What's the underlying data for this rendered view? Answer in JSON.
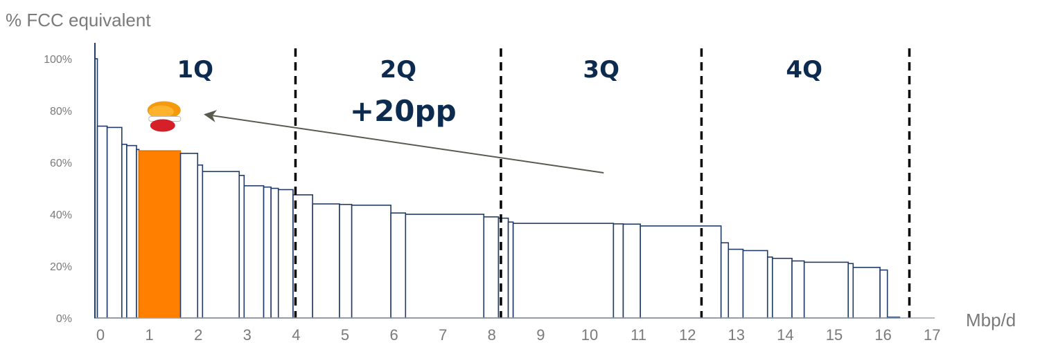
{
  "chart_data": {
    "type": "bar",
    "subtype": "variable-width cost curve",
    "ylabel": "% FCC equivalent",
    "xlabel": "Mbp/d",
    "xlim": [
      0,
      17
    ],
    "ylim": [
      0,
      100
    ],
    "x_ticks": [
      "0",
      "1",
      "2",
      "3",
      "4",
      "5",
      "6",
      "7",
      "8",
      "9",
      "10",
      "11",
      "12",
      "13",
      "14",
      "15",
      "16",
      "17"
    ],
    "y_ticks": [
      "0%",
      "20%",
      "40%",
      "60%",
      "80%",
      "100%"
    ],
    "grid": false,
    "legend": "none",
    "colors": {
      "outline": "#1f3b66",
      "highlight": "#ff7f00",
      "quartile_text": "#0d2a4f",
      "axis_text": "#7a7a7a",
      "arrow": "#5a5a4f"
    },
    "bars": [
      {
        "x0": 0.0,
        "x1": 0.05,
        "y": 100
      },
      {
        "x0": 0.05,
        "x1": 0.25,
        "y": 74
      },
      {
        "x0": 0.25,
        "x1": 0.55,
        "y": 73.5
      },
      {
        "x0": 0.55,
        "x1": 0.65,
        "y": 67
      },
      {
        "x0": 0.65,
        "x1": 0.85,
        "y": 66.5
      },
      {
        "x0": 0.85,
        "x1": 0.9,
        "y": 65
      },
      {
        "x0": 0.9,
        "x1": 1.75,
        "y": 64.5,
        "highlight": true
      },
      {
        "x0": 1.75,
        "x1": 2.1,
        "y": 63.5
      },
      {
        "x0": 2.1,
        "x1": 2.2,
        "y": 59
      },
      {
        "x0": 2.2,
        "x1": 2.95,
        "y": 56.5
      },
      {
        "x0": 2.95,
        "x1": 3.05,
        "y": 55
      },
      {
        "x0": 3.05,
        "x1": 3.45,
        "y": 51
      },
      {
        "x0": 3.45,
        "x1": 3.6,
        "y": 50.5
      },
      {
        "x0": 3.6,
        "x1": 3.75,
        "y": 50
      },
      {
        "x0": 3.75,
        "x1": 4.05,
        "y": 49.5
      },
      {
        "x0": 4.05,
        "x1": 4.45,
        "y": 47.5
      },
      {
        "x0": 4.45,
        "x1": 5.0,
        "y": 44
      },
      {
        "x0": 5.0,
        "x1": 5.25,
        "y": 43.8
      },
      {
        "x0": 5.25,
        "x1": 6.05,
        "y": 43.5
      },
      {
        "x0": 6.05,
        "x1": 6.35,
        "y": 40.5
      },
      {
        "x0": 6.35,
        "x1": 7.95,
        "y": 40
      },
      {
        "x0": 7.95,
        "x1": 8.25,
        "y": 39
      },
      {
        "x0": 8.25,
        "x1": 8.45,
        "y": 38.5
      },
      {
        "x0": 8.45,
        "x1": 8.55,
        "y": 37
      },
      {
        "x0": 8.55,
        "x1": 10.6,
        "y": 36.5
      },
      {
        "x0": 10.6,
        "x1": 10.8,
        "y": 36.3
      },
      {
        "x0": 10.8,
        "x1": 11.15,
        "y": 36.2
      },
      {
        "x0": 11.15,
        "x1": 12.8,
        "y": 35.5
      },
      {
        "x0": 12.8,
        "x1": 12.95,
        "y": 29
      },
      {
        "x0": 12.95,
        "x1": 13.25,
        "y": 26.5
      },
      {
        "x0": 13.25,
        "x1": 13.75,
        "y": 26
      },
      {
        "x0": 13.75,
        "x1": 13.85,
        "y": 23.5
      },
      {
        "x0": 13.85,
        "x1": 14.25,
        "y": 23
      },
      {
        "x0": 14.25,
        "x1": 14.5,
        "y": 22
      },
      {
        "x0": 14.5,
        "x1": 15.4,
        "y": 21.5
      },
      {
        "x0": 15.4,
        "x1": 15.5,
        "y": 21
      },
      {
        "x0": 15.5,
        "x1": 16.05,
        "y": 19.5
      },
      {
        "x0": 16.05,
        "x1": 16.2,
        "y": 18.5
      },
      {
        "x0": 16.2,
        "x1": 16.45,
        "y": 0.3
      }
    ],
    "quartile_boundaries": [
      4.1,
      8.3,
      12.4,
      16.65
    ],
    "quartile_labels": [
      {
        "text": "1Q",
        "x": 2.05
      },
      {
        "text": "2Q",
        "x": 6.2
      },
      {
        "text": "3Q",
        "x": 10.35
      },
      {
        "text": "4Q",
        "x": 14.5
      }
    ],
    "annotation": {
      "text": "+20pp",
      "text_x": 6.3,
      "text_y": 76,
      "arrow_from": {
        "x": 10.4,
        "y": 56
      },
      "arrow_to": {
        "x": 2.25,
        "y": 78.5
      }
    },
    "company_logo_position": {
      "x": 1.3,
      "y": 78
    }
  }
}
